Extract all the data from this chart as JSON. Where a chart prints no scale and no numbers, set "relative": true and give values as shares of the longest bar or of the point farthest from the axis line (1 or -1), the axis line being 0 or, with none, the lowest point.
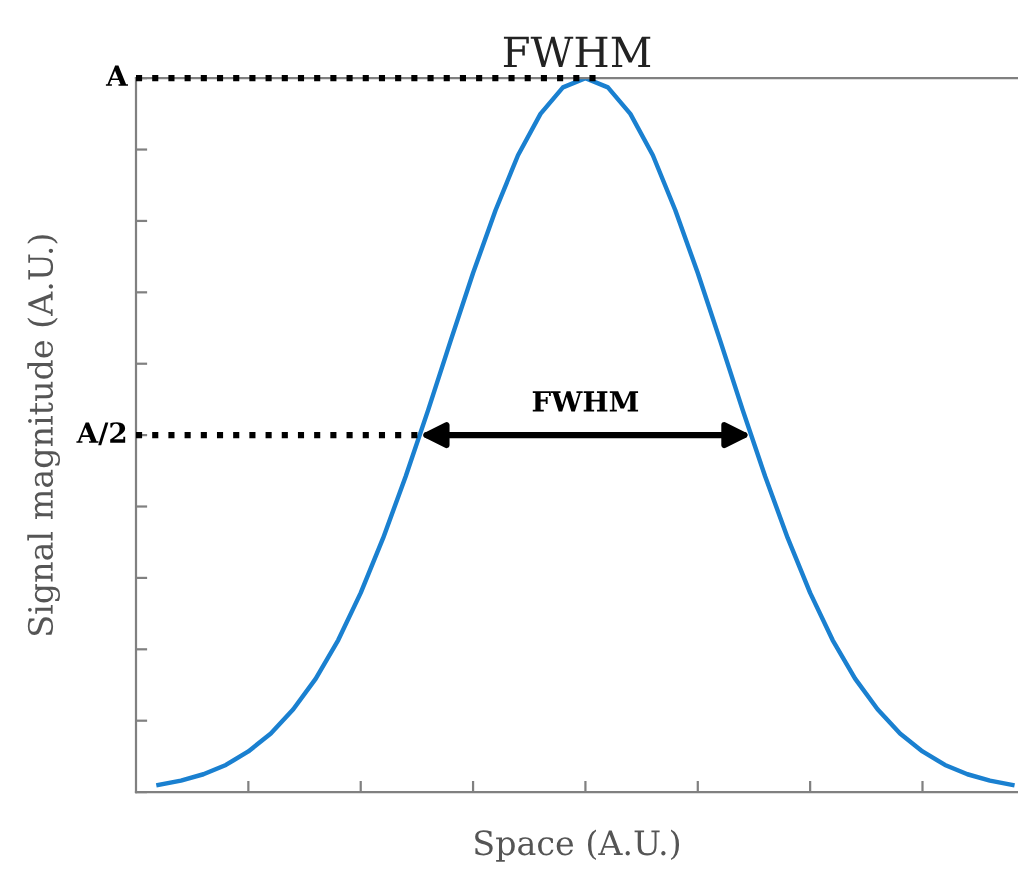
{
  "chart_data": {
    "type": "line",
    "title": "FWHM",
    "xlabel": "Space (A.U.)",
    "ylabel": "Signal magnitude (A.U.)",
    "categories": [
      null,
      null,
      null,
      null,
      null,
      null,
      null,
      null,
      null,
      null,
      null,
      null,
      null,
      null,
      null,
      null,
      null,
      null,
      null,
      null,
      null,
      null,
      null,
      null,
      null,
      null,
      null,
      null,
      null,
      null,
      null,
      null,
      null,
      null,
      null,
      null,
      null,
      null,
      null
    ],
    "series": [
      {
        "color": "#1a80d0",
        "values": [
          0.01,
          0.016,
          0.025,
          0.038,
          0.057,
          0.082,
          0.116,
          0.159,
          0.213,
          0.279,
          0.356,
          0.442,
          0.535,
          0.632,
          0.727,
          0.815,
          0.892,
          0.95,
          0.987,
          1,
          0.987,
          0.95,
          0.892,
          0.815,
          0.727,
          0.632,
          0.535,
          0.442,
          0.356,
          0.279,
          0.213,
          0.159,
          0.116,
          0.082,
          0.057,
          0.038,
          0.025,
          0.016,
          0.01
        ]
      }
    ],
    "relative": true,
    "ref_lines": [
      {
        "axis": "y",
        "value": 1,
        "label": "A",
        "line_style": "dotted",
        "color": "#000000"
      },
      {
        "axis": "y",
        "value": 0.5,
        "label": "A/2",
        "line_style": "dotted",
        "color": "#000000"
      }
    ],
    "annotations": [
      "FWHM"
    ],
    "marker": "none",
    "line_style": "solid",
    "grid": false,
    "legend": false
  }
}
